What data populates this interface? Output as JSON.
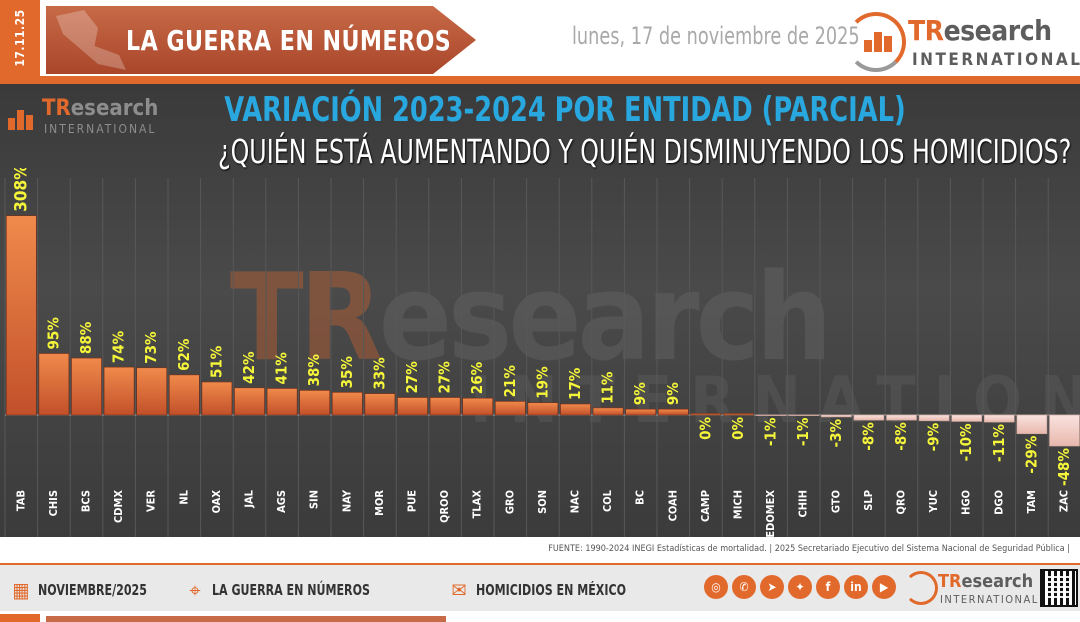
{
  "header": {
    "date_tag": "17.11.25",
    "title": "LA GUERRA EN NÚMEROS",
    "date_text": "lunes, 17 de noviembre de 2025",
    "brand_tr": "TR",
    "brand_rest": "esearch",
    "brand_sub": "INTERNATIONAL"
  },
  "colors": {
    "accent": "#e2692c",
    "title_blue": "#29a8e0",
    "label_yellow": "#f5f53a",
    "bar_positive_top": "#f08a4b",
    "bar_negative": "#f6d9d4"
  },
  "chart_data": {
    "type": "bar",
    "title": "VARIACIÓN 2023-2024 POR ENTIDAD (PARCIAL)",
    "subtitle": "¿QUIÉN ESTÁ AUMENTANDO Y QUIÉN DISMINUYENDO LOS HOMICIDIOS?",
    "categories": [
      "TAB",
      "CHIS",
      "BCS",
      "CDMX",
      "VER",
      "NL",
      "OAX",
      "JAL",
      "AGS",
      "SIN",
      "NAY",
      "MOR",
      "PUE",
      "QROO",
      "TLAX",
      "GRO",
      "SON",
      "NAC",
      "COL",
      "BC",
      "COAH",
      "CAMP",
      "MICH",
      "EDOMEX",
      "CHIH",
      "GTO",
      "SLP",
      "QRO",
      "YUC",
      "HGO",
      "DGO",
      "TAM",
      "ZAC"
    ],
    "values": [
      308,
      95,
      88,
      74,
      73,
      62,
      51,
      42,
      41,
      38,
      35,
      33,
      27,
      27,
      26,
      21,
      19,
      17,
      11,
      9,
      9,
      0,
      0,
      -1,
      -1,
      -3,
      -8,
      -8,
      -9,
      -10,
      -11,
      -29,
      -48
    ],
    "value_labels": [
      "308%",
      "95%",
      "88%",
      "74%",
      "73%",
      "62%",
      "51%",
      "42%",
      "41%",
      "38%",
      "35%",
      "33%",
      "27%",
      "27%",
      "26%",
      "21%",
      "19%",
      "17%",
      "11%",
      "9%",
      "9%",
      "0%",
      "0%",
      "-1%",
      "-1%",
      "-3%",
      "-8%",
      "-8%",
      "-9%",
      "-10%",
      "-11%",
      "-29%",
      "-48%"
    ],
    "unit": "%",
    "ylim": [
      -48,
      308
    ],
    "grid": "vertical",
    "legend": "none"
  },
  "watermark": {
    "tr": "TR",
    "rest": "esearch",
    "sub": "INTERNATIONAL"
  },
  "source": "FUENTE: 1990-2024 INEGI Estadísticas de mortalidad. | 2025 Secretariado Ejecutivo del Sistema Nacional de Seguridad Pública |",
  "footer": {
    "items": [
      {
        "icon": "calendar-icon",
        "label": "NOVIEMBRE/2025"
      },
      {
        "icon": "map-pin-icon",
        "label": "LA GUERRA EN NÚMEROS"
      },
      {
        "icon": "chat-icon",
        "label": "HOMICIDIOS EN MÉXICO"
      }
    ],
    "social_icons": [
      "globe-icon",
      "phone-icon",
      "telegram-icon",
      "twitter-icon",
      "facebook-icon",
      "linkedin-icon",
      "youtube-icon"
    ],
    "brand_tr": "TR",
    "brand_rest": "esearch",
    "brand_sub": "INTERNATIONAL"
  }
}
